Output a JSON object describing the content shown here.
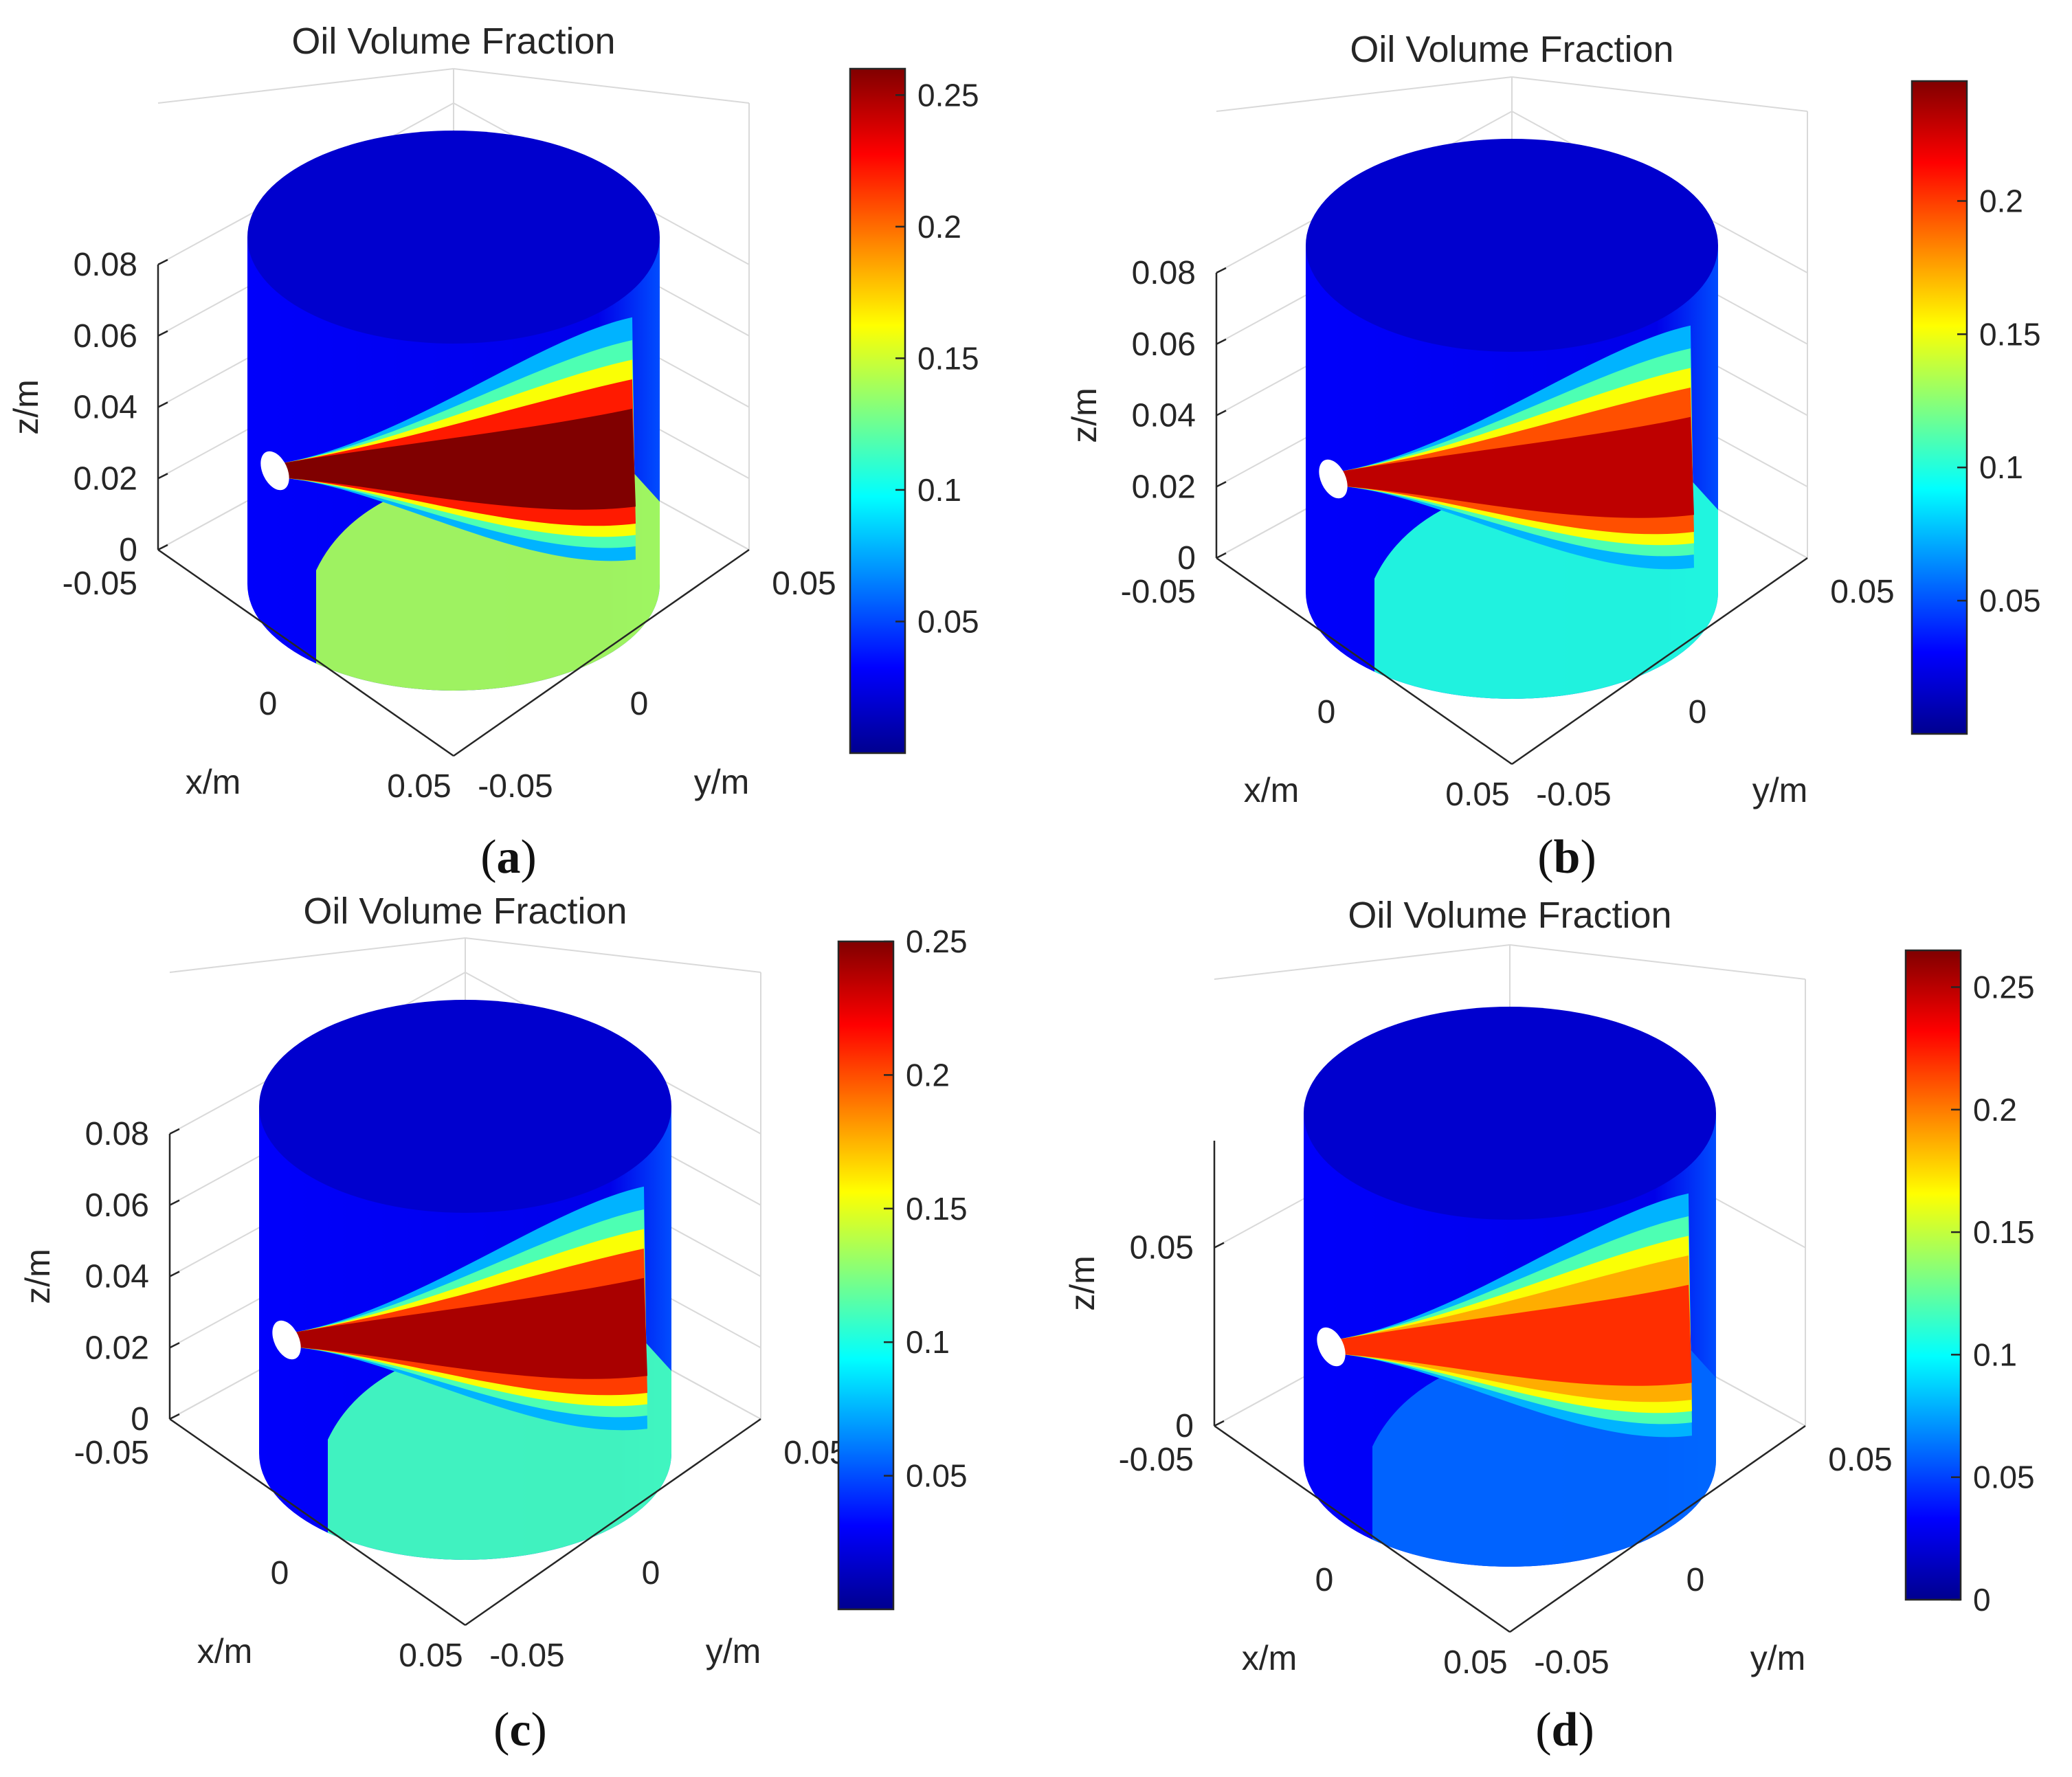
{
  "colorscale": [
    "#00008f",
    "#0000ff",
    "#0080ff",
    "#00ffff",
    "#80ff80",
    "#ffff00",
    "#ff8000",
    "#ff0000",
    "#800000"
  ],
  "chart_data": [
    {
      "type": "heatmap",
      "panel": "(a)",
      "caption_open": "(",
      "caption_letter": "a",
      "caption_close": ")",
      "title": "Oil Volume Fraction",
      "xlabel": "x/m",
      "ylabel": "y/m",
      "zlabel": "z/m",
      "x_ticks": [
        "-0.05",
        "0",
        "0.05"
      ],
      "y_ticks": [
        "-0.05",
        "0",
        "0.05"
      ],
      "z_ticks": [
        "0",
        "0.02",
        "0.04",
        "0.06",
        "0.08"
      ],
      "xlim": [
        -0.05,
        0.05
      ],
      "ylim": [
        -0.05,
        0.05
      ],
      "zlim": [
        0,
        0.08
      ],
      "colorbar": {
        "min": 0,
        "max": 0.26,
        "ticks": [
          "0.05",
          "0.1",
          "0.15",
          "0.2",
          "0.25"
        ],
        "tick_values": [
          0.05,
          0.1,
          0.15,
          0.2,
          0.25
        ]
      },
      "peak_value": 0.26,
      "lower_wall_level": 0.14
    },
    {
      "type": "heatmap",
      "panel": "(b)",
      "caption_open": "(",
      "caption_letter": "b",
      "caption_close": ")",
      "title": "Oil Volume Fraction",
      "xlabel": "x/m",
      "ylabel": "y/m",
      "zlabel": "z/m",
      "x_ticks": [
        "-0.05",
        "0",
        "0.05"
      ],
      "y_ticks": [
        "-0.05",
        "0",
        "0.05"
      ],
      "z_ticks": [
        "0",
        "0.02",
        "0.04",
        "0.06",
        "0.08"
      ],
      "xlim": [
        -0.05,
        0.05
      ],
      "ylim": [
        -0.05,
        0.05
      ],
      "zlim": [
        0,
        0.08
      ],
      "colorbar": {
        "min": 0,
        "max": 0.245,
        "ticks": [
          "0.05",
          "0.1",
          "0.15",
          "0.2"
        ],
        "tick_values": [
          0.05,
          0.1,
          0.15,
          0.2
        ]
      },
      "peak_value": 0.23,
      "lower_wall_level": 0.1
    },
    {
      "type": "heatmap",
      "panel": "(c)",
      "caption_open": "(",
      "caption_letter": "c",
      "caption_close": ")",
      "title": "Oil Volume Fraction",
      "xlabel": "x/m",
      "ylabel": "y/m",
      "zlabel": "z/m",
      "x_ticks": [
        "-0.05",
        "0",
        "0.05"
      ],
      "y_ticks": [
        "-0.05",
        "0",
        "0.05"
      ],
      "z_ticks": [
        "0",
        "0.02",
        "0.04",
        "0.06",
        "0.08"
      ],
      "xlim": [
        -0.05,
        0.05
      ],
      "ylim": [
        -0.05,
        0.05
      ],
      "zlim": [
        0,
        0.08
      ],
      "colorbar": {
        "min": 0,
        "max": 0.25,
        "ticks": [
          "0.05",
          "0.1",
          "0.15",
          "0.2",
          "0.25"
        ],
        "tick_values": [
          0.05,
          0.1,
          0.15,
          0.2,
          0.25
        ]
      },
      "peak_value": 0.24,
      "lower_wall_level": 0.11
    },
    {
      "type": "heatmap",
      "panel": "(d)",
      "caption_open": "(",
      "caption_letter": "d",
      "caption_close": ")",
      "title": "Oil Volume Fraction",
      "xlabel": "x/m",
      "ylabel": "y/m",
      "zlabel": "z/m",
      "x_ticks": [
        "-0.05",
        "0",
        "0.05"
      ],
      "y_ticks": [
        "-0.05",
        "0",
        "0.05"
      ],
      "z_ticks": [
        "0",
        "0.05"
      ],
      "xlim": [
        -0.05,
        0.05
      ],
      "ylim": [
        -0.05,
        0.05
      ],
      "zlim": [
        0,
        0.08
      ],
      "colorbar": {
        "min": 0,
        "max": 0.265,
        "ticks": [
          "0",
          "0.05",
          "0.1",
          "0.15",
          "0.2",
          "0.25"
        ],
        "tick_values": [
          0,
          0.05,
          0.1,
          0.15,
          0.2,
          0.25
        ]
      },
      "peak_value": 0.22,
      "lower_wall_level": 0.06
    }
  ]
}
